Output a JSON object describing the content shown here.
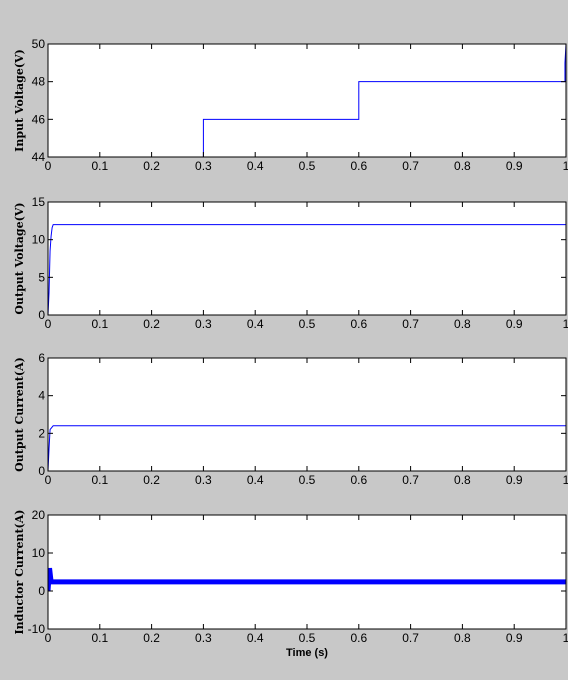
{
  "chart_data": [
    {
      "type": "line",
      "ylabel": "Input Voltage(V)",
      "xlim": [
        0,
        1
      ],
      "ylim": [
        44,
        50
      ],
      "xticks": [
        0,
        0.1,
        0.2,
        0.3,
        0.4,
        0.5,
        0.6,
        0.7,
        0.8,
        0.9,
        1
      ],
      "xtick_labels": [
        "0",
        "0.1",
        "0.2",
        "0.3",
        "0.4",
        "0.5",
        "0.6",
        "0.7",
        "0.8",
        "0.9",
        "1"
      ],
      "yticks": [
        44,
        46,
        48,
        50
      ],
      "ytick_labels": [
        "44",
        "46",
        "48",
        "50"
      ],
      "line_width": 1,
      "series": [
        {
          "x": [
            0,
            0.3,
            0.3,
            0.6,
            0.6,
            0.998,
            0.998,
            1
          ],
          "y": [
            44,
            44,
            46,
            46,
            48,
            48,
            49,
            50
          ]
        }
      ]
    },
    {
      "type": "line",
      "ylabel": "Output Voltage(V)",
      "xlim": [
        0,
        1
      ],
      "ylim": [
        0,
        15
      ],
      "xticks": [
        0,
        0.1,
        0.2,
        0.3,
        0.4,
        0.5,
        0.6,
        0.7,
        0.8,
        0.9,
        1
      ],
      "xtick_labels": [
        "0",
        "0.1",
        "0.2",
        "0.3",
        "0.4",
        "0.5",
        "0.6",
        "0.7",
        "0.8",
        "0.9",
        "1"
      ],
      "yticks": [
        0,
        5,
        10,
        15
      ],
      "ytick_labels": [
        "0",
        "5",
        "10",
        "15"
      ],
      "line_width": 1,
      "series": [
        {
          "x": [
            0,
            0.002,
            0.004,
            0.006,
            0.008,
            0.01,
            1
          ],
          "y": [
            0,
            3,
            8.5,
            10.5,
            11.6,
            12,
            12
          ]
        }
      ]
    },
    {
      "type": "line",
      "ylabel": "Output Current(A)",
      "xlim": [
        0,
        1
      ],
      "ylim": [
        0,
        6
      ],
      "xticks": [
        0,
        0.1,
        0.2,
        0.3,
        0.4,
        0.5,
        0.6,
        0.7,
        0.8,
        0.9,
        1
      ],
      "xtick_labels": [
        "0",
        "0.1",
        "0.2",
        "0.3",
        "0.4",
        "0.5",
        "0.6",
        "0.7",
        "0.8",
        "0.9",
        "1"
      ],
      "yticks": [
        0,
        2,
        4,
        6
      ],
      "ytick_labels": [
        "0",
        "2",
        "4",
        "6"
      ],
      "line_width": 1,
      "series": [
        {
          "x": [
            0,
            0.002,
            0.004,
            0.01,
            1
          ],
          "y": [
            0,
            1.2,
            2.2,
            2.4,
            2.4
          ]
        }
      ]
    },
    {
      "type": "line",
      "ylabel": "Inductor Current(A)",
      "xlabel": "Time (s)",
      "xlim": [
        0,
        1
      ],
      "ylim": [
        -10,
        20
      ],
      "xticks": [
        0,
        0.1,
        0.2,
        0.3,
        0.4,
        0.5,
        0.6,
        0.7,
        0.8,
        0.9,
        1
      ],
      "xtick_labels": [
        "0",
        "0.1",
        "0.2",
        "0.3",
        "0.4",
        "0.5",
        "0.6",
        "0.7",
        "0.8",
        "0.9",
        "1"
      ],
      "yticks": [
        -10,
        0,
        10,
        20
      ],
      "ytick_labels": [
        "-10",
        "0",
        "10",
        "20"
      ],
      "line_width": 5,
      "series": [
        {
          "x": [
            0,
            0.003,
            0.006,
            1
          ],
          "y": [
            0,
            6,
            2.4,
            2.4
          ]
        }
      ]
    }
  ],
  "colors": {
    "line": "#0000ff",
    "figure_background": "#c8c8c8",
    "axes_background": "#ffffff",
    "axis": "#000000"
  }
}
